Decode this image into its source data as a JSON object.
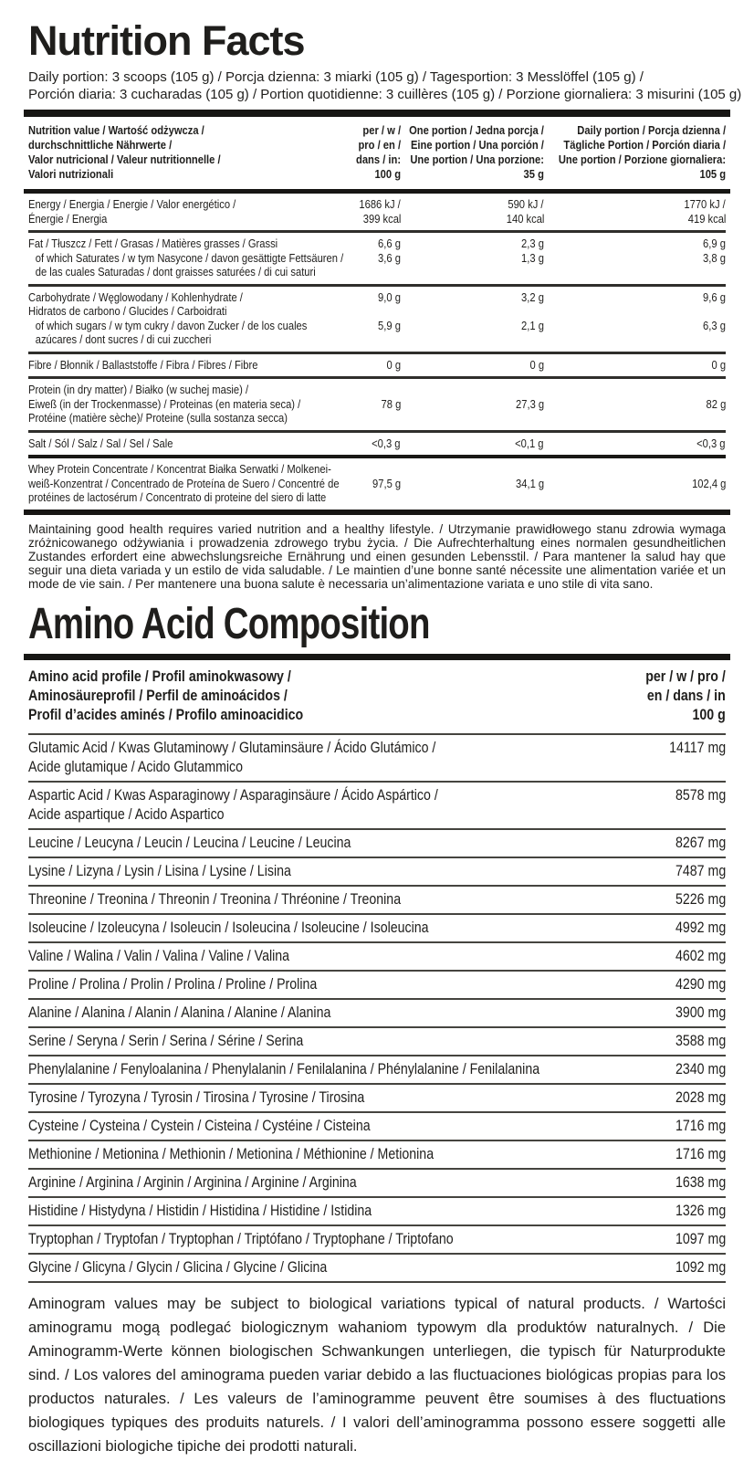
{
  "colors": {
    "background": "#ffffff",
    "text": "#1f1e1c",
    "bar": "#171614",
    "separator": "#45443f"
  },
  "header": {
    "title": "Nutrition Facts",
    "portion_lines": [
      "Daily portion: 3 scoops (105 g) / Porcja dzienna: 3 miarki (105 g) / Tagesportion: 3 Messlöffel (105 g) /",
      "Porción diaria: 3 cucharadas (105 g) / Portion quotidienne: 3 cuillères (105 g) / Porzione giornaliera: 3 misurini (105 g)"
    ]
  },
  "nutrition_table": {
    "header": {
      "label_lines": [
        "Nutrition value / Wartość odżywcza /",
        "durchschnittliche Nährwerte /",
        "Valor nutricional / Valeur nutritionnelle /",
        "Valori nutrizionali"
      ],
      "per100_lines": [
        "per / w /",
        "pro / en /",
        "dans / in:",
        "100 g"
      ],
      "portion35_lines": [
        "One portion / Jedna porcja /",
        "Eine portion / Una porción /",
        "Une portion / Una porzione:",
        "35 g"
      ],
      "daily_lines": [
        "Daily portion / Porcja dzienna /",
        "Tägliche Portion / Porción diaria /",
        "Une portion / Porzione giornaliera:",
        "105 g"
      ]
    },
    "rows": [
      {
        "id": "energy",
        "divider_after": "medium",
        "lines": [
          {
            "label": "Energy / Energia / Energie / Valor energético /",
            "indent": 0,
            "v100": "1686 kJ /",
            "v35": "590 kJ /",
            "v105": "1770 kJ /"
          },
          {
            "label": "Énergie / Energia",
            "indent": 0,
            "v100": "399 kcal",
            "v35": "140 kcal",
            "v105": "419 kcal"
          }
        ]
      },
      {
        "id": "fat",
        "divider_after": "medium",
        "lines": [
          {
            "label": "Fat / Tłuszcz / Fett / Grasas / Matières grasses / Grassi",
            "indent": 0,
            "v100": "6,6 g",
            "v35": "2,3 g",
            "v105": "6,9 g"
          },
          {
            "label": "of which Saturates / w tym Nasycone / davon gesättigte Fettsäuren /",
            "indent": 1,
            "v100": "3,6 g",
            "v35": "1,3 g",
            "v105": "3,8 g"
          },
          {
            "label": "de las cuales Saturadas / dont graisses saturées / di cui saturi",
            "indent": 1
          }
        ]
      },
      {
        "id": "carbohydrate",
        "divider_after": "medium",
        "lines": [
          {
            "label": "Carbohydrate / Węglowodany / Kohlenhydrate /",
            "indent": 0,
            "v100": "9,0 g",
            "v35": "3,2 g",
            "v105": "9,6 g"
          },
          {
            "label": "Hidratos de carbono / Glucides / Carboidrati",
            "indent": 0
          },
          {
            "label": "of which sugars / w tym cukry / davon Zucker / de los cuales",
            "indent": 1,
            "v100": "5,9 g",
            "v35": "2,1 g",
            "v105": "6,3 g"
          },
          {
            "label": "azúcares / dont sucres / di cui zuccheri",
            "indent": 1
          }
        ]
      },
      {
        "id": "fibre",
        "divider_after": "medium",
        "lines": [
          {
            "label": "Fibre / Błonnik / Ballaststoffe / Fibra / Fibres / Fibre",
            "indent": 0,
            "v100": "0 g",
            "v35": "0 g",
            "v105": "0 g"
          }
        ]
      },
      {
        "id": "protein",
        "divider_after": "medium",
        "lines": [
          {
            "label": "Protein (in dry matter) / Białko (w suchej masie) /",
            "indent": 0
          },
          {
            "label": "Eiweß (in der Trockenmasse) / Proteinas (en materia seca) /",
            "indent": 0,
            "v100": "78 g",
            "v35": "27,3 g",
            "v105": "82 g"
          },
          {
            "label": "Protéine (matière sèche)/ Proteine (sulla sostanza secca)",
            "indent": 0
          }
        ]
      },
      {
        "id": "salt",
        "divider_after": "thick",
        "lines": [
          {
            "label": "Salt / Sól / Salz / Sal / Sel / Sale",
            "indent": 0,
            "v100": "<0,3 g",
            "v35": "<0,1 g",
            "v105": "<0,3 g"
          }
        ]
      },
      {
        "id": "whey-protein-concentrate",
        "divider_after": "none",
        "lines": [
          {
            "label": "Whey Protein Concentrate / Koncentrat Białka Serwatki / Molkenei-",
            "indent": 0
          },
          {
            "label": "weiß-Konzentrat / Concentrado de Proteína de Suero / Concentré de",
            "indent": 0,
            "v100": "97,5 g",
            "v35": "34,1 g",
            "v105": "102,4 g"
          },
          {
            "label": "protéines de lactosérum / Concentrato di proteine del siero di latte",
            "indent": 0
          }
        ]
      }
    ]
  },
  "health_note": "Maintaining good health requires varied nutrition and a healthy lifestyle. / Utrzymanie prawidłowego stanu zdrowia wymaga zróżnicowanego odżywiania i prowadzenia zdrowego trybu życia. / Die Aufrechterhaltung eines normalen gesundheitlichen Zustandes erfordert eine abwechslungsreiche Ernährung und einen gesunden Lebensstil. / Para mantener la salud hay que seguir una dieta variada y un estilo de vida saludable. / Le maintien d’une bonne santé nécessite une alimentation variée et un mode de vie sain. / Per mantenere una buona salute è necessaria un’alimentazione variata e uno stile di vita sano.",
  "amino_section": {
    "title": "Amino Acid Composition",
    "header": {
      "label_lines": [
        "Amino acid profile / Profil aminokwasowy /",
        "Aminosäureprofil / Perfil de aminoácidos /",
        "Profil d’acides aminés / Profilo aminoacidico"
      ],
      "unit_lines": [
        "per / w / pro /",
        "en / dans / in",
        "100 g"
      ]
    },
    "rows": [
      {
        "id": "glutamic-acid",
        "label_lines": [
          "Glutamic Acid / Kwas Glutaminowy / Glutaminsäure / Ácido Glutámico /",
          "Acide glutamique / Acido Glutammico"
        ],
        "value": "14117 mg"
      },
      {
        "id": "aspartic-acid",
        "label_lines": [
          "Aspartic Acid / Kwas Asparaginowy / Asparaginsäure / Ácido Aspártico /",
          "Acide aspartique / Acido Aspartico"
        ],
        "value": "8578 mg"
      },
      {
        "id": "leucine",
        "label_lines": [
          "Leucine / Leucyna / Leucin / Leucina / Leucine / Leucina"
        ],
        "value": "8267 mg"
      },
      {
        "id": "lysine",
        "label_lines": [
          "Lysine / Lizyna / Lysin / Lisina / Lysine / Lisina"
        ],
        "value": "7487 mg"
      },
      {
        "id": "threonine",
        "label_lines": [
          "Threonine / Treonina / Threonin / Treonina / Thréonine / Treonina"
        ],
        "value": "5226 mg"
      },
      {
        "id": "isoleucine",
        "label_lines": [
          "Isoleucine / Izoleucyna / Isoleucin / Isoleucina / Isoleucine / Isoleucina"
        ],
        "value": "4992 mg"
      },
      {
        "id": "valine",
        "label_lines": [
          "Valine / Walina / Valin / Valina / Valine / Valina"
        ],
        "value": "4602 mg"
      },
      {
        "id": "proline",
        "label_lines": [
          "Proline / Prolina / Prolin / Prolina / Proline / Prolina"
        ],
        "value": "4290 mg"
      },
      {
        "id": "alanine",
        "label_lines": [
          "Alanine / Alanina / Alanin / Alanina / Alanine / Alanina"
        ],
        "value": "3900 mg"
      },
      {
        "id": "serine",
        "label_lines": [
          "Serine / Seryna / Serin / Serina / Sérine / Serina"
        ],
        "value": "3588 mg"
      },
      {
        "id": "phenylalanine",
        "label_lines": [
          "Phenylalanine / Fenyloalanina / Phenylalanin / Fenilalanina / Phénylalanine / Fenilalanina"
        ],
        "value": "2340 mg"
      },
      {
        "id": "tyrosine",
        "label_lines": [
          "Tyrosine / Tyrozyna / Tyrosin / Tirosina / Tyrosine / Tirosina"
        ],
        "value": "2028 mg"
      },
      {
        "id": "cysteine",
        "label_lines": [
          "Cysteine / Cysteina / Cystein / Cisteina / Cystéine / Cisteina"
        ],
        "value": "1716 mg"
      },
      {
        "id": "methionine",
        "label_lines": [
          "Methionine / Metionina / Methionin / Metionina / Méthionine / Metionina"
        ],
        "value": "1716 mg"
      },
      {
        "id": "arginine",
        "label_lines": [
          "Arginine / Arginina / Arginin / Arginina / Arginine / Arginina"
        ],
        "value": "1638 mg"
      },
      {
        "id": "histidine",
        "label_lines": [
          "Histidine / Histydyna / Histidin / Histidina / Histidine / Istidina"
        ],
        "value": "1326 mg"
      },
      {
        "id": "tryptophan",
        "label_lines": [
          "Tryptophan / Tryptofan / Tryptophan / Triptófano / Tryptophane / Triptofano"
        ],
        "value": "1097 mg"
      },
      {
        "id": "glycine",
        "label_lines": [
          "Glycine / Glicyna / Glycin / Glicina / Glycine / Glicina"
        ],
        "value": "1092 mg"
      }
    ]
  },
  "aminogram_note": "Aminogram values may be subject to biological variations typical of natural products. / Wartości aminogramu mogą podlegać biologicznym wahaniom typowym dla produktów naturalnych. / Die Aminogramm-Werte können biologischen Schwankungen unterliegen, die typisch für Naturprodukte sind. / Los valores del aminograma pueden variar debido a las fluctuaciones biológicas propias para los productos naturales. / Les valeurs de l’aminogramme peuvent être soumises à des fluctuations biologiques typiques des produits naturels. / I valori dell’aminogramma possono essere soggetti alle oscillazioni biologiche tipiche dei prodotti naturali."
}
